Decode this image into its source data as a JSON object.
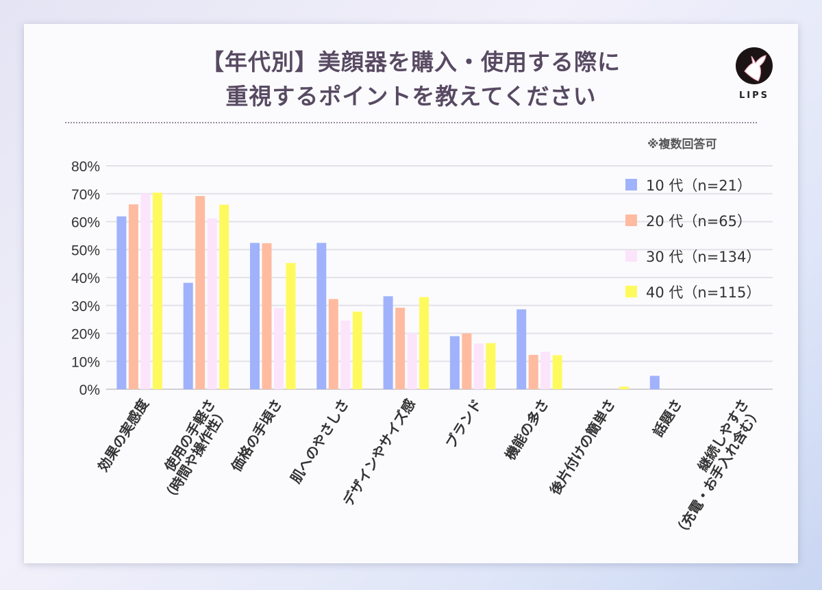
{
  "title_lines": [
    "【年代別】美顔器を購入・使用する際に",
    "重視するポイントを教えてください"
  ],
  "note": "※複数回答可",
  "logo": {
    "text": "LIPS"
  },
  "chart_data": {
    "type": "bar",
    "title": "【年代別】美顔器を購入・使用する際に重視するポイントを教えてください",
    "categories": [
      [
        "効果の実感度"
      ],
      [
        "使用の手軽さ",
        "（時間や操作性）"
      ],
      [
        "価格の手頃さ"
      ],
      [
        "肌へのやさしさ"
      ],
      [
        "デザインやサイズ感"
      ],
      [
        "ブランド"
      ],
      [
        "機能の多さ"
      ],
      [
        "後片付けの簡単さ"
      ],
      [
        "話題さ"
      ],
      [
        "継続しやすさ",
        "（充電・お手入れ含む）"
      ]
    ],
    "series": [
      {
        "name": "10 代（n=21）",
        "color": "#a0b2fb",
        "values": [
          61.9,
          38.1,
          52.4,
          52.4,
          33.3,
          19.0,
          28.6,
          0,
          4.8,
          0
        ]
      },
      {
        "name": "20 代（n=65）",
        "color": "#ffbba0",
        "values": [
          66.2,
          69.2,
          52.3,
          32.3,
          29.2,
          20.0,
          12.3,
          0,
          0,
          0
        ]
      },
      {
        "name": "30 代（n=134）",
        "color": "#fce4fb",
        "values": [
          70.1,
          61.2,
          29.1,
          24.6,
          20.1,
          16.4,
          13.4,
          0,
          0,
          0
        ]
      },
      {
        "name": "40 代（n=115）",
        "color": "#fefa5e",
        "values": [
          70.4,
          66.1,
          45.2,
          27.8,
          33.0,
          16.5,
          12.2,
          0.9,
          0,
          0
        ]
      }
    ],
    "y_ticks": [
      "0%",
      "10%",
      "20%",
      "30%",
      "40%",
      "50%",
      "60%",
      "70%",
      "80%"
    ],
    "ylim": [
      0,
      80
    ],
    "grid": true,
    "legend": "top-right"
  }
}
